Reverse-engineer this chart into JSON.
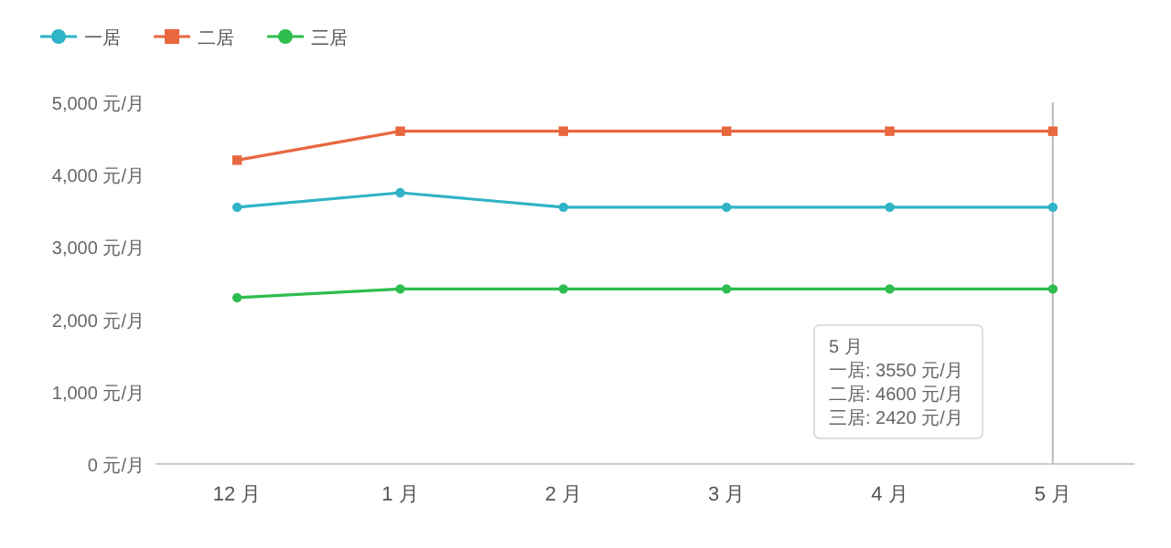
{
  "chart_data": {
    "type": "line",
    "categories": [
      "12 月",
      "1 月",
      "2 月",
      "3 月",
      "4 月",
      "5 月"
    ],
    "series": [
      {
        "name": "一居",
        "color": "#2fb3c6",
        "marker": "circle",
        "values": [
          3550,
          3750,
          3550,
          3550,
          3550,
          3550
        ]
      },
      {
        "name": "二居",
        "color": "#e8673f",
        "marker": "square",
        "values": [
          4200,
          4600,
          4600,
          4600,
          4600,
          4600
        ]
      },
      {
        "name": "三居",
        "color": "#2ebd4e",
        "marker": "circle",
        "values": [
          2300,
          2420,
          2420,
          2420,
          2420,
          2420
        ]
      }
    ],
    "ylim": [
      0,
      5000
    ],
    "yticks": [
      {
        "value": 0,
        "label": "0 元/月"
      },
      {
        "value": 1000,
        "label": "1,000 元/月"
      },
      {
        "value": 2000,
        "label": "2,000 元/月"
      },
      {
        "value": 3000,
        "label": "3,000 元/月"
      },
      {
        "value": 4000,
        "label": "4,000 元/月"
      },
      {
        "value": 5000,
        "label": "5,000 元/月"
      }
    ],
    "legend": "top left",
    "ref_lines": [
      {
        "axis": "x",
        "value": "5 月",
        "color": "#bbbbbb"
      }
    ],
    "annotations": [
      "5 月",
      "一居: 3550 元/月",
      "二居: 4600 元/月",
      "三居: 2420 元/月"
    ]
  }
}
